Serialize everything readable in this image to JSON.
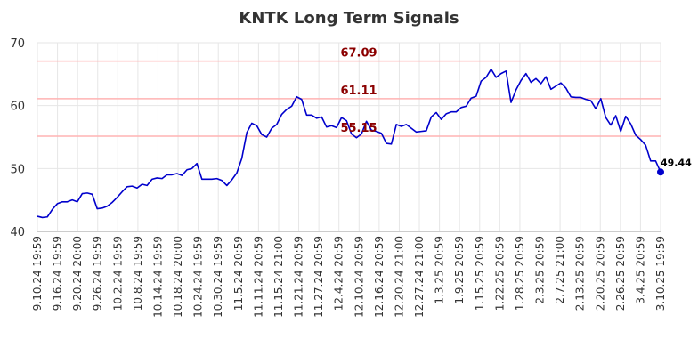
{
  "chart_data": {
    "type": "line",
    "title": "KNTK Long Term Signals",
    "xlabel": "",
    "ylabel": "",
    "ylim": [
      40,
      70
    ],
    "yticks": [
      "40",
      "50",
      "60",
      "70"
    ],
    "grid": true,
    "colors": {
      "line": "#0000cc",
      "level": "#ffb3b3",
      "level_text": "#8b0000",
      "grid": "#e6e6e6"
    },
    "x_tick_labels": [
      "9.10.24 19:59",
      "9.16.24 19:59",
      "9.20.24 20:00",
      "9.26.24 19:59",
      "10.2.24 19:59",
      "10.8.24 19:59",
      "10.14.24 19:59",
      "10.18.24 20:00",
      "10.24.24 19:59",
      "10.30.24 19:59",
      "11.5.24 20:59",
      "11.11.24 20:59",
      "11.15.24 21:00",
      "11.21.24 20:59",
      "11.27.24 20:59",
      "12.4.24 20:59",
      "12.10.24 20:59",
      "12.16.24 20:59",
      "12.20.24 21:00",
      "12.27.24 21:00",
      "1.3.25 20:59",
      "1.9.25 20:59",
      "1.15.25 20:59",
      "1.22.25 20:59",
      "1.28.25 20:59",
      "2.3.25 20:59",
      "2.7.25 21:00",
      "2.13.25 20:59",
      "2.20.25 20:59",
      "2.26.25 20:59",
      "3.4.25 20:59",
      "3.10.25 19:59"
    ],
    "levels": [
      {
        "value": 67.09,
        "label": "67.09"
      },
      {
        "value": 61.11,
        "label": "61.11"
      },
      {
        "value": 55.15,
        "label": "55.15"
      }
    ],
    "series": [
      {
        "values": [
          42.4,
          42.2,
          42.3,
          43.5,
          44.4,
          44.7,
          44.7,
          45.0,
          44.7,
          46.0,
          46.1,
          45.9,
          43.6,
          43.7,
          44.0,
          44.6,
          45.4,
          46.3,
          47.1,
          47.2,
          46.9,
          47.5,
          47.3,
          48.3,
          48.5,
          48.4,
          49.0,
          49.0,
          49.2,
          48.9,
          49.8,
          50.0,
          50.8,
          48.3,
          48.3,
          48.3,
          48.4,
          48.1,
          47.3,
          48.2,
          49.3,
          51.6,
          55.7,
          57.2,
          56.8,
          55.4,
          55.0,
          56.4,
          57.0,
          58.6,
          59.4,
          59.9,
          61.4,
          61.0,
          58.5,
          58.5,
          58.0,
          58.2,
          56.6,
          56.8,
          56.5,
          58.1,
          57.6,
          55.5,
          54.9,
          55.5,
          57.5,
          56.1,
          55.9,
          55.6,
          54.0,
          53.9,
          57.0,
          56.7,
          57.0,
          56.4,
          55.8,
          55.9,
          56.0,
          58.2,
          58.9,
          57.8,
          58.7,
          59.0,
          59.0,
          59.7,
          59.9,
          61.2,
          61.5,
          63.9,
          64.5,
          65.8,
          64.5,
          65.1,
          65.5,
          60.5,
          62.5,
          64.0,
          65.1,
          63.7,
          64.3,
          63.5,
          64.6,
          62.6,
          63.1,
          63.6,
          62.8,
          61.4,
          61.3,
          61.3,
          61.0,
          60.8,
          59.5,
          61.1,
          58.1,
          56.9,
          58.4,
          55.9,
          58.3,
          57.1,
          55.3,
          54.6,
          53.7,
          51.2,
          51.2,
          49.44
        ]
      }
    ],
    "last_value": {
      "value": 49.44,
      "label": "49.44"
    }
  }
}
